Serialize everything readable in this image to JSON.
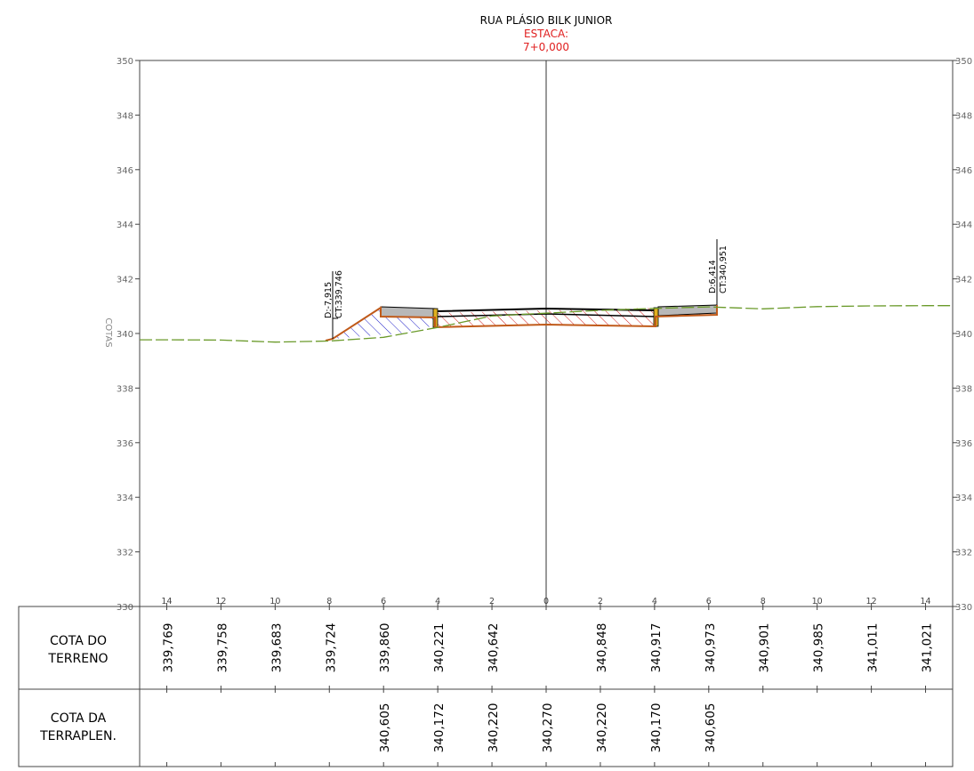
{
  "header": {
    "street": "RUA PLÁSIO BILK JUNIOR",
    "station_label": "ESTACA:",
    "station_value": "7+0,000"
  },
  "axis": {
    "ylabel": "COTAS",
    "y_ticks": [
      330,
      332,
      334,
      336,
      338,
      340,
      342,
      344,
      346,
      348,
      350
    ],
    "y_tick_labels": [
      "330",
      "332",
      "334",
      "336",
      "338",
      "340",
      "342",
      "344",
      "346",
      "348",
      "350"
    ],
    "offset_labels": [
      "14",
      "12",
      "10",
      "8",
      "6",
      "4",
      "2",
      "0",
      "2",
      "4",
      "6",
      "8",
      "10",
      "12",
      "14"
    ]
  },
  "annotations": {
    "left_offset": "D:-7,915",
    "left_elev": "CT:339,746",
    "right_offset": "D:6,414",
    "right_elev": "CT:340,951"
  },
  "table": {
    "row1_title_a": "COTA DO",
    "row1_title_b": "TERRENO",
    "row2_title_a": "COTA DA",
    "row2_title_b": "TERRAPLEN.",
    "terrain_values": [
      "339,769",
      "339,758",
      "339,683",
      "339,724",
      "339,860",
      "340,221",
      "340,642",
      "",
      "340,848",
      "340,917",
      "340,973",
      "340,901",
      "340,985",
      "341,011",
      "341,021"
    ],
    "grade_values": [
      "",
      "",
      "",
      "",
      "340,605",
      "340,172",
      "340,220",
      "340,270",
      "340,220",
      "340,170",
      "340,605",
      "",
      "",
      "",
      ""
    ]
  },
  "chart_data": {
    "type": "cross-section",
    "title": "RUA PLÁSIO BILK JUNIOR",
    "subtitle": "ESTACA: 7+0,000",
    "ylabel": "COTAS",
    "ylim": [
      330,
      350
    ],
    "xlim": [
      -15,
      15
    ],
    "ground_line": {
      "x": [
        -15,
        -14,
        -12,
        -10,
        -8,
        -6,
        -4,
        -2,
        2,
        4,
        6,
        8,
        10,
        12,
        14,
        15
      ],
      "y": [
        339.77,
        339.769,
        339.758,
        339.683,
        339.724,
        339.86,
        340.221,
        340.642,
        340.848,
        340.917,
        340.973,
        340.901,
        340.985,
        341.011,
        341.021,
        341.02
      ]
    },
    "cut_fill_points": [
      {
        "x": -7.915,
        "y": 339.746
      },
      {
        "x": 6.414,
        "y": 340.951
      }
    ],
    "platform": {
      "x": [
        -6,
        -4,
        -2,
        0,
        2,
        4,
        6
      ],
      "y": [
        340.605,
        340.172,
        340.22,
        340.27,
        340.22,
        340.17,
        340.605
      ]
    },
    "colors": {
      "ground": "#6a9a2a",
      "section_outline": "#c05a1a",
      "fill_hatch": "#2020c8",
      "cut_hatch": "#d02020",
      "pavement": "#b8b8b8",
      "curb": "#e0b020",
      "station_text": "#e02020"
    }
  }
}
